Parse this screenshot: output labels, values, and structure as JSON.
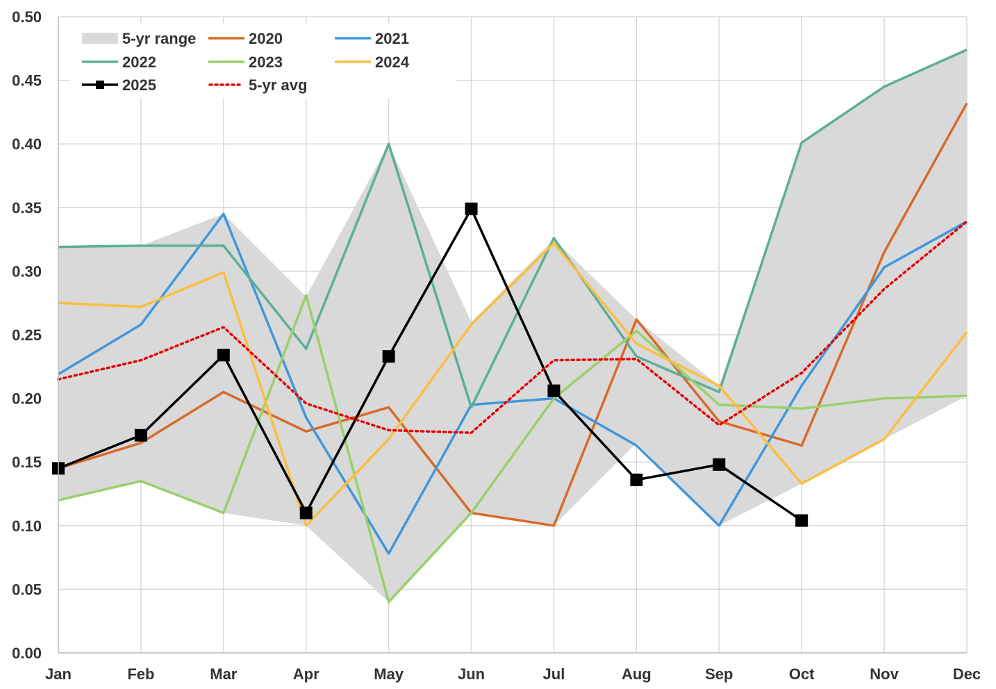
{
  "chart_data": {
    "type": "line",
    "title": "",
    "xlabel": "",
    "ylabel": "",
    "categories": [
      "Jan",
      "Feb",
      "Mar",
      "Apr",
      "May",
      "Jun",
      "Jul",
      "Aug",
      "Sep",
      "Oct",
      "Nov",
      "Dec"
    ],
    "ylim": [
      0,
      0.5
    ],
    "yticks": [
      "0.00",
      "0.05",
      "0.10",
      "0.15",
      "0.20",
      "0.25",
      "0.30",
      "0.35",
      "0.40",
      "0.45",
      "0.50"
    ],
    "ytick_values": [
      0,
      0.05,
      0.1,
      0.15,
      0.2,
      0.25,
      0.3,
      0.35,
      0.4,
      0.45,
      0.5
    ],
    "grid": true,
    "legend_position": "top-left",
    "range": {
      "name": "5-yr range",
      "color": "#d9d9d9",
      "low": [
        0.12,
        0.135,
        0.11,
        0.1,
        0.04,
        0.11,
        0.1,
        0.165,
        0.1,
        0.133,
        0.168,
        0.202
      ],
      "high": [
        0.32,
        0.32,
        0.345,
        0.28,
        0.4,
        0.26,
        0.325,
        0.262,
        0.21,
        0.4,
        0.445,
        0.473
      ]
    },
    "series": [
      {
        "name": "2020",
        "color": "#d9692a",
        "style": "solid",
        "values": [
          0.145,
          0.165,
          0.205,
          0.174,
          0.193,
          0.11,
          0.1,
          0.262,
          0.182,
          0.163,
          0.315,
          0.432
        ]
      },
      {
        "name": "2021",
        "color": "#3f97dd",
        "style": "solid",
        "values": [
          0.219,
          0.258,
          0.345,
          0.185,
          0.078,
          0.195,
          0.2,
          0.163,
          0.1,
          0.21,
          0.303,
          0.339
        ]
      },
      {
        "name": "2022",
        "color": "#5caf97",
        "style": "solid",
        "values": [
          0.319,
          0.32,
          0.32,
          0.239,
          0.4,
          0.193,
          0.326,
          0.233,
          0.205,
          0.401,
          0.445,
          0.474
        ]
      },
      {
        "name": "2023",
        "color": "#99d069",
        "style": "solid",
        "values": [
          0.12,
          0.135,
          0.11,
          0.281,
          0.04,
          0.11,
          0.2,
          0.253,
          0.195,
          0.192,
          0.2,
          0.202
        ]
      },
      {
        "name": "2024",
        "color": "#fbbe40",
        "style": "solid",
        "values": [
          0.275,
          0.272,
          0.299,
          0.1,
          0.168,
          0.258,
          0.322,
          0.243,
          0.21,
          0.133,
          0.168,
          0.252
        ]
      },
      {
        "name": "2025",
        "color": "#000000",
        "style": "solid",
        "marker": "square",
        "values": [
          0.145,
          0.171,
          0.234,
          0.11,
          0.233,
          0.349,
          0.206,
          0.136,
          0.148,
          0.104,
          null,
          null
        ]
      },
      {
        "name": "5-yr avg",
        "color": "#e60000",
        "style": "dotted",
        "values": [
          0.215,
          0.23,
          0.256,
          0.196,
          0.175,
          0.173,
          0.23,
          0.231,
          0.179,
          0.22,
          0.286,
          0.339
        ]
      }
    ],
    "legend": [
      {
        "label": "5-yr range",
        "kind": "area",
        "color": "#d9d9d9"
      },
      {
        "label": "2020",
        "kind": "line",
        "color": "#d9692a"
      },
      {
        "label": "2021",
        "kind": "line",
        "color": "#3f97dd"
      },
      {
        "label": "2022",
        "kind": "line",
        "color": "#5caf97"
      },
      {
        "label": "2023",
        "kind": "line",
        "color": "#99d069"
      },
      {
        "label": "2024",
        "kind": "line",
        "color": "#fbbe40"
      },
      {
        "label": "2025",
        "kind": "marker-line",
        "color": "#000000"
      },
      {
        "label": "5-yr avg",
        "kind": "dotted",
        "color": "#e60000"
      }
    ]
  }
}
